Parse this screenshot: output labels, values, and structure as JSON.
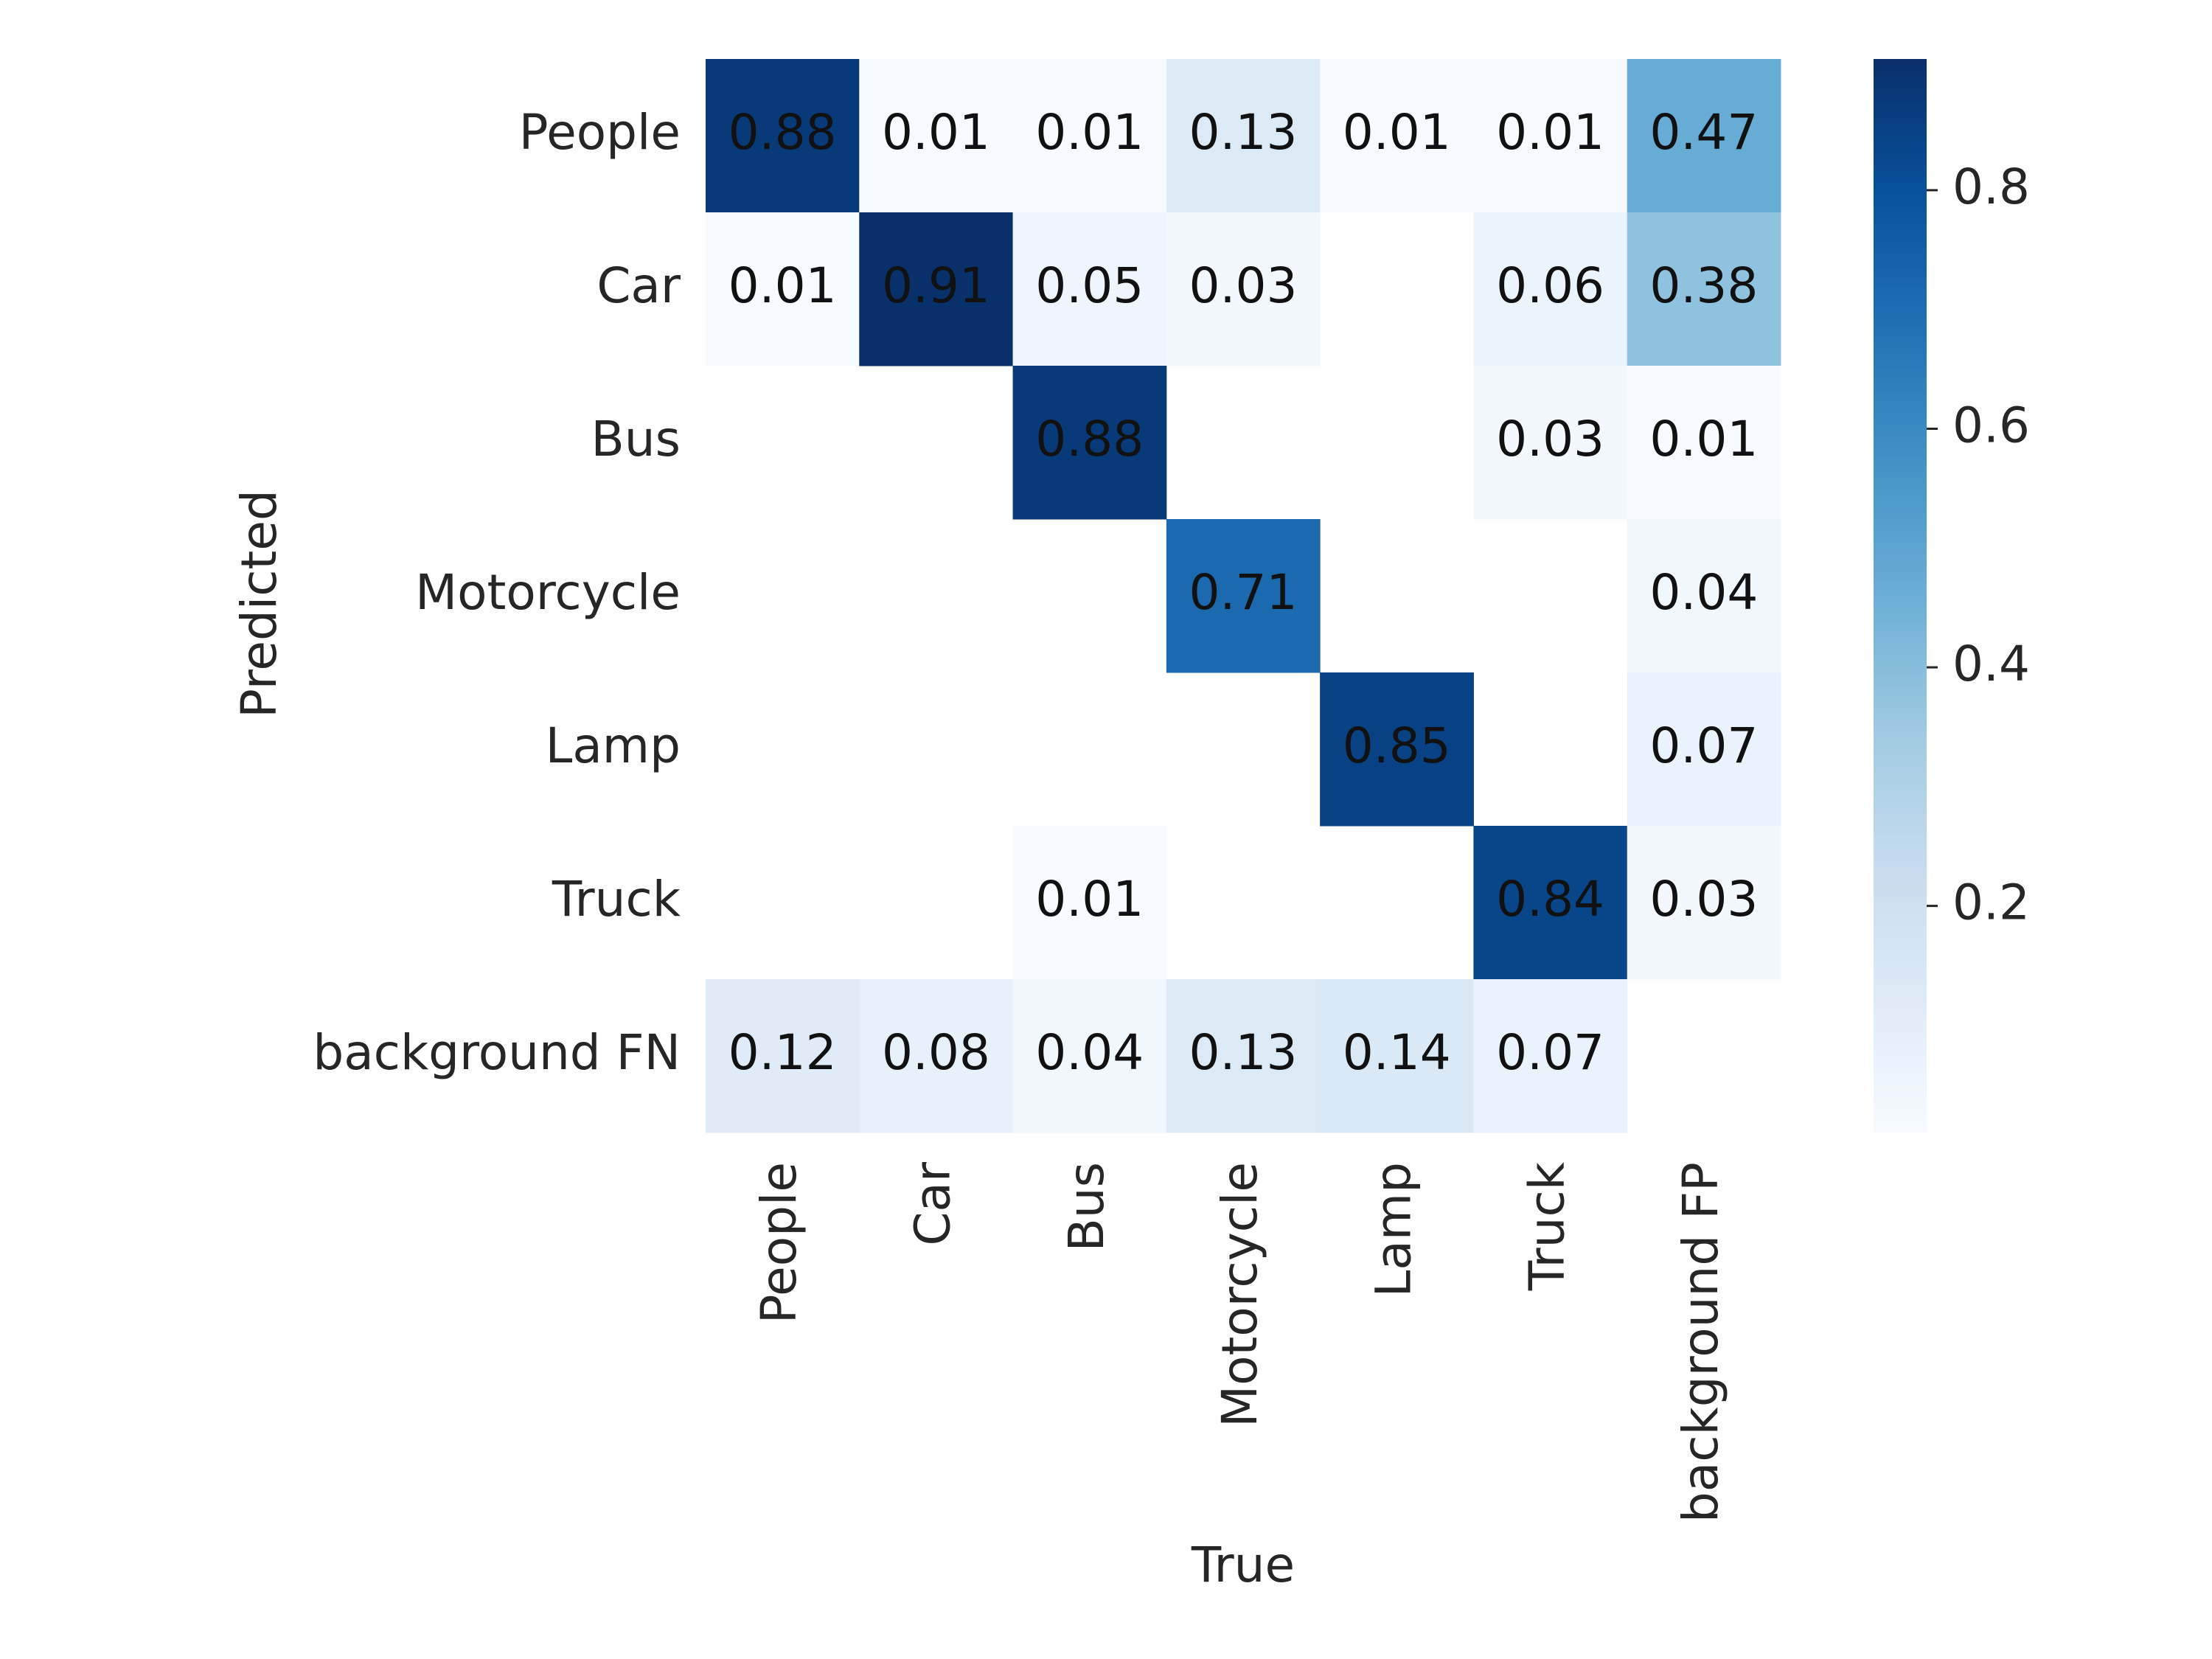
{
  "chart_data": {
    "type": "heatmap",
    "x_label": "True",
    "y_label": "Predicted",
    "x_categories": [
      "People",
      "Car",
      "Bus",
      "Motorcycle",
      "Lamp",
      "Truck",
      "background FP"
    ],
    "y_categories": [
      "People",
      "Car",
      "Bus",
      "Motorcycle",
      "Lamp",
      "Truck",
      "background FN"
    ],
    "z": [
      [
        0.88,
        0.01,
        0.01,
        0.13,
        0.01,
        0.01,
        0.47
      ],
      [
        0.01,
        0.91,
        0.05,
        0.03,
        null,
        0.06,
        0.38
      ],
      [
        null,
        null,
        0.88,
        null,
        null,
        0.03,
        0.01
      ],
      [
        null,
        null,
        null,
        0.71,
        null,
        null,
        0.04
      ],
      [
        null,
        null,
        null,
        null,
        0.85,
        null,
        0.07
      ],
      [
        null,
        null,
        0.01,
        null,
        null,
        0.84,
        0.03
      ],
      [
        0.12,
        0.08,
        0.04,
        0.13,
        0.14,
        0.07,
        null
      ]
    ],
    "colormap": "Blues",
    "zlim": [
      0.01,
      0.91
    ],
    "zticks": [
      0.2,
      0.4,
      0.6,
      0.8
    ]
  }
}
